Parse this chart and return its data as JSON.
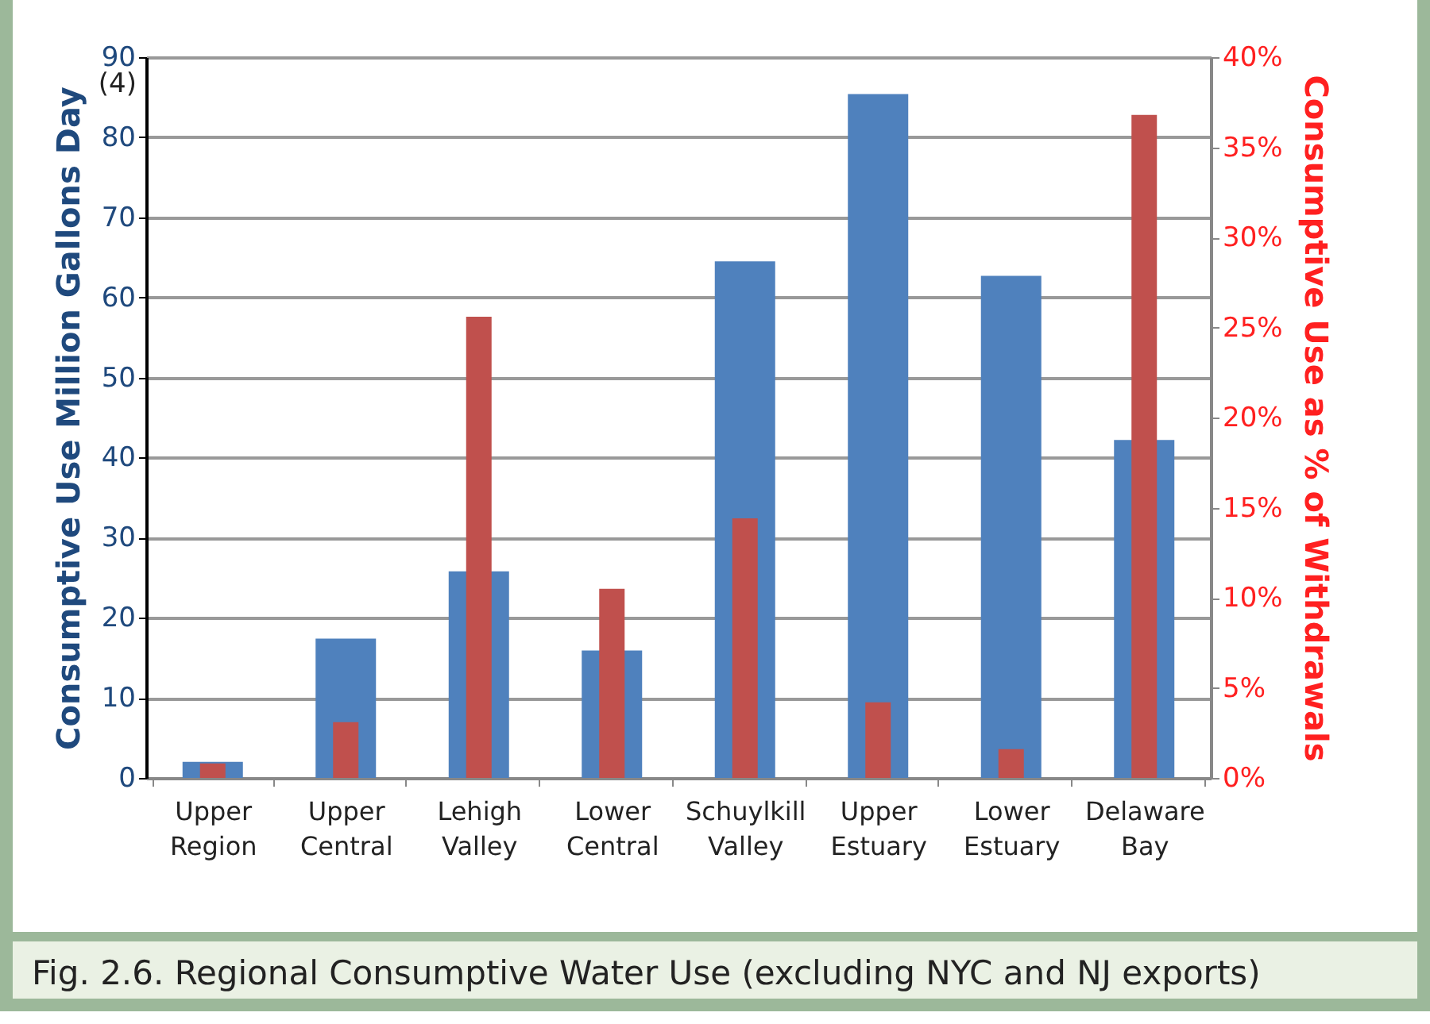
{
  "chart_data": {
    "type": "bar",
    "ylabel": "Consumptive Use Million Gallons Day",
    "y2label": "Consumptive Use as % of Withdrawals",
    "categories": [
      "Upper Region",
      "Upper Central",
      "Lehigh Valley",
      "Lower Central",
      "Schuylkill Valley",
      "Upper Estuary",
      "Lower Estuary",
      "Delaware Bay"
    ],
    "series": [
      {
        "type": "bar",
        "color": "#4f81bd",
        "values": [
          2.0,
          17.4,
          25.8,
          15.9,
          64.5,
          85.4,
          62.7,
          42.2
        ]
      },
      {
        "type": "bar",
        "color": "#c0504d",
        "axis": "y2",
        "values": [
          0.8,
          3.1,
          25.6,
          10.5,
          14.4,
          4.2,
          1.6,
          36.8
        ]
      }
    ],
    "ylim": [
      0,
      90
    ],
    "yticks": [
      0,
      10,
      20,
      30,
      40,
      50,
      60,
      70,
      80,
      90
    ],
    "y2lim": [
      0,
      40
    ],
    "y2ticks": [
      {
        "value": 0,
        "label": "0%"
      },
      {
        "value": 5,
        "label": "5%"
      },
      {
        "value": 10,
        "label": "10%"
      },
      {
        "value": 15,
        "label": "15%"
      },
      {
        "value": 20,
        "label": "20%"
      },
      {
        "value": 25,
        "label": "25%"
      },
      {
        "value": 30,
        "label": "30%"
      },
      {
        "value": 35,
        "label": "35%"
      },
      {
        "value": 40,
        "label": "40%"
      }
    ],
    "grid": "y",
    "annotations": [
      "(4)",
      "Fig. 2.6. Regional Consumptive Water Use (excluding NYC and NJ exports)"
    ]
  }
}
